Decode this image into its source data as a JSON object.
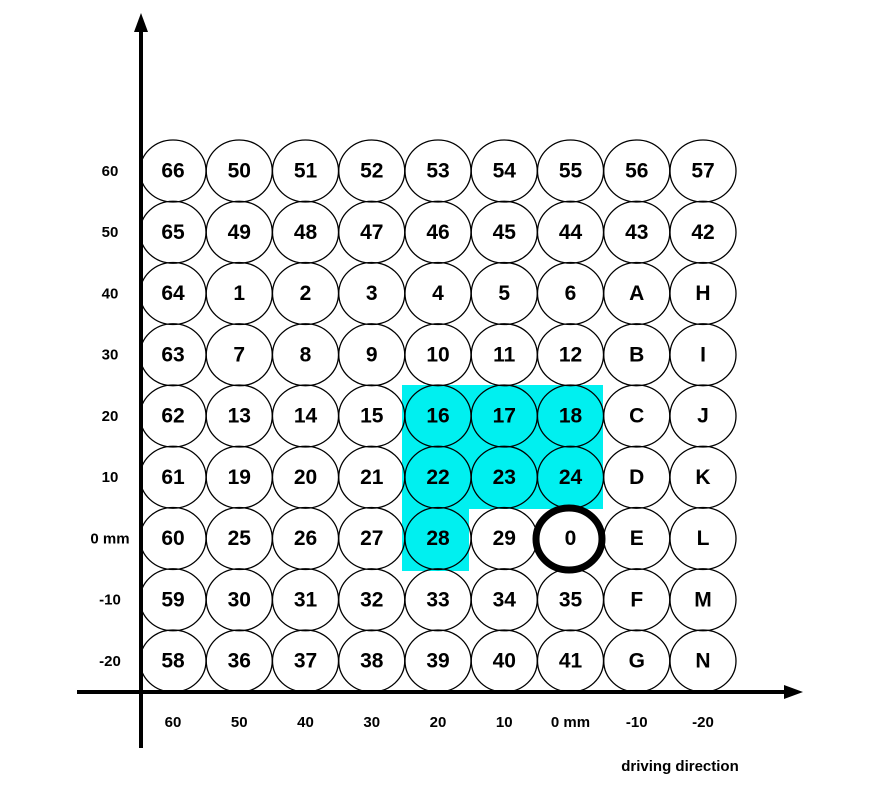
{
  "y_axis_labels": [
    "60",
    "50",
    "40",
    "30",
    "20",
    "10",
    "0 mm",
    "-10",
    "-20"
  ],
  "x_axis_labels": [
    "60",
    "50",
    "40",
    "30",
    "20",
    "10",
    "0 mm",
    "-10",
    "-20"
  ],
  "x_axis_title": "driving direction",
  "rows": [
    [
      "66",
      "50",
      "51",
      "52",
      "53",
      "54",
      "55",
      "56",
      "57"
    ],
    [
      "65",
      "49",
      "48",
      "47",
      "46",
      "45",
      "44",
      "43",
      "42"
    ],
    [
      "64",
      "1",
      "2",
      "3",
      "4",
      "5",
      "6",
      "A",
      "H"
    ],
    [
      "63",
      "7",
      "8",
      "9",
      "10",
      "11",
      "12",
      "B",
      "I"
    ],
    [
      "62",
      "13",
      "14",
      "15",
      "16",
      "17",
      "18",
      "C",
      "J"
    ],
    [
      "61",
      "19",
      "20",
      "21",
      "22",
      "23",
      "24",
      "D",
      "K"
    ],
    [
      "60",
      "25",
      "26",
      "27",
      "28",
      "29",
      "0",
      "E",
      "L"
    ],
    [
      "59",
      "30",
      "31",
      "32",
      "33",
      "34",
      "35",
      "F",
      "M"
    ],
    [
      "58",
      "36",
      "37",
      "38",
      "39",
      "40",
      "41",
      "G",
      "N"
    ]
  ]
}
